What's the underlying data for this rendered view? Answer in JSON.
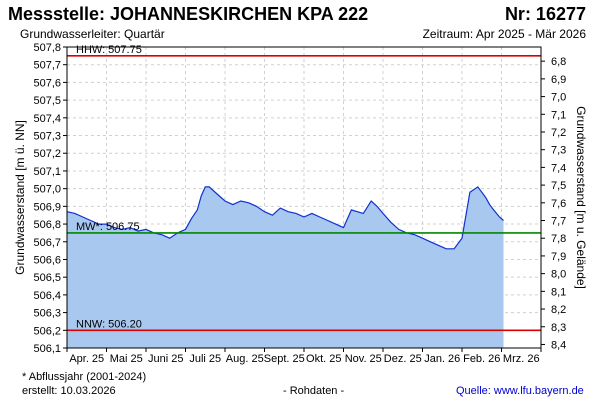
{
  "header": {
    "title": "Messstelle: JOHANNESKIRCHEN KPA 222",
    "number": "Nr: 16277",
    "aquifer": "Grundwasserleiter: Quartär",
    "period": "Zeitraum: Apr 2025 - Mär 2026"
  },
  "footer": {
    "note": "* Abflussjahr (2001-2024)",
    "created": "erstellt:  10.03.2026",
    "rawdata": "- Rohdaten -",
    "source_label": "Quelle:",
    "source_link": "www.lfu.bayern.de"
  },
  "colors": {
    "fill": "#a8c8f0",
    "line": "#1030d0",
    "hhw": "#dd0000",
    "mw": "#008800",
    "nnw": "#dd0000",
    "grid": "#d0d0d0"
  },
  "chart_data": {
    "type": "area",
    "ylabel_left": "Grundwasserstand [m ü. NN]",
    "ylabel_right": "Grundwasserstand [m u. Gelände]",
    "ylim": [
      506.1,
      507.8
    ],
    "yticks_left": [
      "506,1",
      "506,2",
      "506,3",
      "506,4",
      "506,5",
      "506,6",
      "506,7",
      "506,8",
      "506,9",
      "507,0",
      "507,1",
      "507,2",
      "507,3",
      "507,4",
      "507,5",
      "507,6",
      "507,7",
      "507,8"
    ],
    "yticks_right": [
      "6,8",
      "6,9",
      "7,0",
      "7,1",
      "7,2",
      "7,3",
      "7,4",
      "7,5",
      "7,6",
      "7,7",
      "7,8",
      "7,9",
      "8,0",
      "8,1",
      "8,2",
      "8,3",
      "8,4"
    ],
    "xticks": [
      "Apr. 25",
      "Mai 25",
      "Juni 25",
      "Juli 25",
      "Aug. 25",
      "Sept. 25",
      "Okt. 25",
      "Nov. 25",
      "Dez. 25",
      "Jan. 26",
      "Feb. 26",
      "Mrz. 26"
    ],
    "x_unit": "month index from Apr 2025 (0 = 1 Apr 2025)",
    "series": [
      {
        "x": [
          0,
          0.2,
          0.4,
          0.6,
          0.8,
          1.0,
          1.2,
          1.4,
          1.6,
          1.8,
          2.0,
          2.2,
          2.4,
          2.6,
          2.8,
          3.0,
          3.15,
          3.3,
          3.4,
          3.5,
          3.6,
          3.8,
          4.0,
          4.2,
          4.4,
          4.6,
          4.8,
          5.0,
          5.2,
          5.4,
          5.6,
          5.8,
          6.0,
          6.2,
          6.4,
          6.6,
          6.8,
          7.0,
          7.2,
          7.35,
          7.5,
          7.7,
          7.85,
          8.0,
          8.2,
          8.4,
          8.6,
          8.8,
          9.0,
          9.2,
          9.4,
          9.6,
          9.8,
          10.0,
          10.2,
          10.4,
          10.5,
          10.6,
          10.7,
          10.8,
          10.95,
          11.05
        ],
        "y": [
          506.87,
          506.86,
          506.84,
          506.82,
          506.8,
          506.8,
          506.78,
          506.77,
          506.78,
          506.76,
          506.77,
          506.75,
          506.74,
          506.72,
          506.75,
          506.77,
          506.83,
          506.88,
          506.96,
          507.01,
          507.01,
          506.97,
          506.93,
          506.91,
          506.93,
          506.92,
          506.9,
          506.87,
          506.85,
          506.89,
          506.87,
          506.86,
          506.84,
          506.86,
          506.84,
          506.82,
          506.8,
          506.78,
          506.88,
          506.87,
          506.86,
          506.93,
          506.9,
          506.86,
          506.81,
          506.77,
          506.75,
          506.74,
          506.72,
          506.7,
          506.68,
          506.66,
          506.66,
          506.72,
          506.98,
          507.01,
          506.98,
          506.95,
          506.91,
          506.88,
          506.84,
          506.82
        ]
      }
    ],
    "reference_lines": [
      {
        "label": "HHW: 507.75",
        "value": 507.75,
        "color": "#dd0000"
      },
      {
        "label": "MW*: 506.75",
        "value": 506.75,
        "color": "#008800"
      },
      {
        "label": "NNW: 506.20",
        "value": 506.2,
        "color": "#dd0000"
      }
    ],
    "grid": true
  }
}
